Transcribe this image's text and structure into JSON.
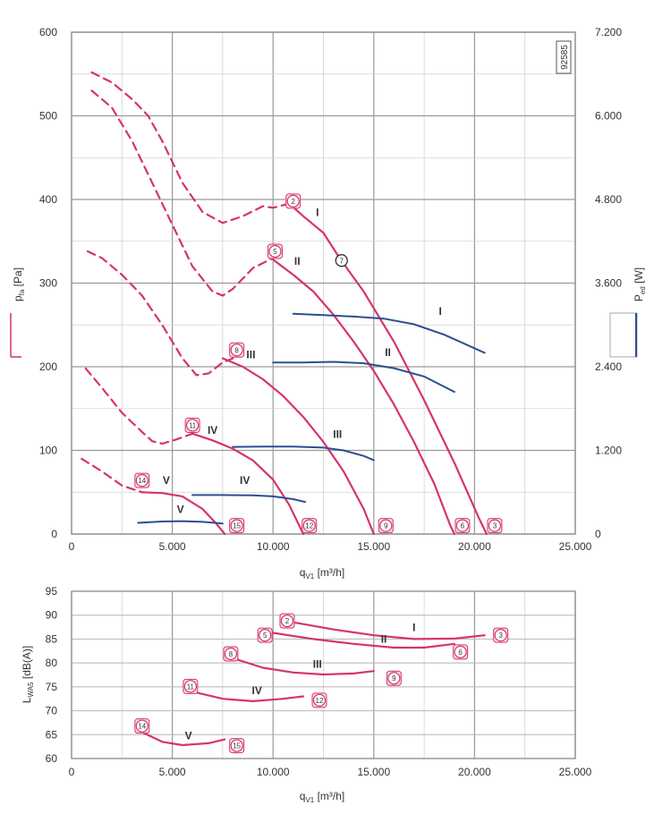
{
  "chart_data": [
    {
      "type": "line",
      "id": "92585",
      "xlabel": "q",
      "xlabel_sub": "V1",
      "xlabel_unit": " [m³/h]",
      "ylabel": "p",
      "ylabel_sub": "fa",
      "ylabel_unit": " [Pa]",
      "y2label": "P",
      "y2label_sub": "ed",
      "y2label_unit": " [W]",
      "xlim": [
        0,
        25000
      ],
      "ylim": [
        0,
        600
      ],
      "y2lim": [
        0,
        7200
      ],
      "x_ticks": [
        0,
        5000,
        10000,
        15000,
        20000,
        25000
      ],
      "x_tick_labels": [
        "0",
        "5.000",
        "10.000",
        "15.000",
        "20.000",
        "25.000"
      ],
      "y_ticks": [
        0,
        100,
        200,
        300,
        400,
        500,
        600
      ],
      "y_tick_labels": [
        "0",
        "100",
        "200",
        "300",
        "400",
        "500",
        "600"
      ],
      "y2_ticks": [
        0,
        1200,
        2400,
        3600,
        4800,
        6000,
        7200
      ],
      "y2_tick_labels": [
        "0",
        "1.200",
        "2.400",
        "3.600",
        "4.800",
        "6.000",
        "7.200"
      ],
      "grid": true,
      "colors": {
        "pressure": "#d6336f",
        "power": "#2b4f8f",
        "grid": "#9a9a9a"
      },
      "pressure_series": [
        {
          "label": "I",
          "dashed": [
            [
              1000,
              552
            ],
            [
              2000,
              540
            ],
            [
              3000,
              520
            ],
            [
              3800,
              500
            ],
            [
              4500,
              470
            ],
            [
              5500,
              420
            ],
            [
              6500,
              385
            ],
            [
              7500,
              372
            ],
            [
              8500,
              380
            ],
            [
              9500,
              392
            ],
            [
              10000,
              390
            ],
            [
              10800,
              395
            ]
          ],
          "solid": [
            [
              10800,
              395
            ],
            [
              11500,
              380
            ],
            [
              12500,
              360
            ],
            [
              13300,
              330
            ],
            [
              14500,
              290
            ],
            [
              16000,
              230
            ],
            [
              17500,
              160
            ],
            [
              19000,
              85
            ],
            [
              20200,
              20
            ],
            [
              20600,
              0
            ]
          ]
        },
        {
          "label": "II",
          "dashed": [
            [
              1000,
              530
            ],
            [
              2000,
              510
            ],
            [
              3000,
              470
            ],
            [
              4000,
              420
            ],
            [
              5000,
              370
            ],
            [
              6000,
              320
            ],
            [
              7000,
              290
            ],
            [
              7500,
              285
            ],
            [
              8000,
              293
            ],
            [
              9000,
              318
            ],
            [
              10000,
              330
            ]
          ],
          "solid": [
            [
              10000,
              328
            ],
            [
              11000,
              310
            ],
            [
              12000,
              290
            ],
            [
              13000,
              262
            ],
            [
              14000,
              230
            ],
            [
              15000,
              195
            ],
            [
              16000,
              155
            ],
            [
              17000,
              110
            ],
            [
              18000,
              60
            ],
            [
              18800,
              10
            ],
            [
              19000,
              0
            ]
          ]
        },
        {
          "label": "III",
          "dashed": [
            [
              800,
              338
            ],
            [
              1500,
              330
            ],
            [
              2500,
              310
            ],
            [
              3500,
              285
            ],
            [
              4500,
              250
            ],
            [
              5500,
              210
            ],
            [
              6200,
              190
            ],
            [
              6800,
              192
            ],
            [
              7500,
              205
            ],
            [
              8000,
              210
            ]
          ],
          "solid": [
            [
              7500,
              210
            ],
            [
              8500,
              200
            ],
            [
              9500,
              185
            ],
            [
              10500,
              165
            ],
            [
              11500,
              140
            ],
            [
              12500,
              110
            ],
            [
              13500,
              75
            ],
            [
              14500,
              30
            ],
            [
              15000,
              0
            ]
          ]
        },
        {
          "label": "IV",
          "dashed": [
            [
              700,
              198
            ],
            [
              1500,
              175
            ],
            [
              2500,
              145
            ],
            [
              3500,
              122
            ],
            [
              4000,
              111
            ],
            [
              4500,
              108
            ],
            [
              5200,
              113
            ],
            [
              6000,
              120
            ]
          ],
          "solid": [
            [
              6000,
              120
            ],
            [
              7000,
              112
            ],
            [
              8000,
              102
            ],
            [
              9000,
              88
            ],
            [
              10000,
              65
            ],
            [
              10800,
              35
            ],
            [
              11500,
              0
            ]
          ]
        },
        {
          "label": "V",
          "dashed": [
            [
              500,
              90
            ],
            [
              1500,
              75
            ],
            [
              2500,
              58
            ],
            [
              3500,
              50
            ]
          ],
          "solid": [
            [
              3500,
              50
            ],
            [
              4500,
              49
            ],
            [
              5500,
              45
            ],
            [
              6500,
              30
            ],
            [
              7200,
              12
            ],
            [
              7600,
              0
            ]
          ]
        }
      ],
      "power_series": [
        {
          "label": "I",
          "points": [
            [
              11000,
              3160
            ],
            [
              12500,
              3140
            ],
            [
              14000,
              3120
            ],
            [
              15500,
              3090
            ],
            [
              17000,
              3010
            ],
            [
              18500,
              2860
            ],
            [
              20500,
              2600
            ]
          ]
        },
        {
          "label": "II",
          "points": [
            [
              10000,
              2460
            ],
            [
              11500,
              2460
            ],
            [
              13000,
              2470
            ],
            [
              14500,
              2450
            ],
            [
              16000,
              2380
            ],
            [
              17500,
              2260
            ],
            [
              19000,
              2040
            ]
          ]
        },
        {
          "label": "III",
          "points": [
            [
              8000,
              1250
            ],
            [
              9500,
              1255
            ],
            [
              11000,
              1255
            ],
            [
              12500,
              1240
            ],
            [
              13500,
              1200
            ],
            [
              14500,
              1120
            ],
            [
              15000,
              1060
            ]
          ]
        },
        {
          "label": "IV",
          "points": [
            [
              6000,
              560
            ],
            [
              7500,
              560
            ],
            [
              9000,
              555
            ],
            [
              10000,
              540
            ],
            [
              11000,
              500
            ],
            [
              11600,
              460
            ]
          ]
        },
        {
          "label": "V",
          "points": [
            [
              3300,
              160
            ],
            [
              4500,
              180
            ],
            [
              5500,
              185
            ],
            [
              6500,
              175
            ],
            [
              7500,
              150
            ]
          ]
        }
      ],
      "curve_labels": [
        {
          "text": "I",
          "x": 12200,
          "y": 380
        },
        {
          "text": "II",
          "x": 11200,
          "y": 322
        },
        {
          "text": "III",
          "x": 8900,
          "y": 210
        },
        {
          "text": "IV",
          "x": 7000,
          "y": 120
        },
        {
          "text": "V",
          "x": 4700,
          "y": 60
        },
        {
          "text": "I",
          "x": 18300,
          "y": 262,
          "axis": "power"
        },
        {
          "text": "II",
          "x": 15700,
          "y": 213,
          "axis": "power"
        },
        {
          "text": "III",
          "x": 13200,
          "y": 115,
          "axis": "power"
        },
        {
          "text": "IV",
          "x": 8600,
          "y": 60,
          "axis": "power"
        },
        {
          "text": "V",
          "x": 5400,
          "y": 25,
          "axis": "power"
        }
      ],
      "point_markers": [
        {
          "text": "2",
          "x": 11000,
          "y": 398
        },
        {
          "text": "5",
          "x": 10100,
          "y": 338
        },
        {
          "text": "7",
          "x": 13400,
          "y": 327,
          "style": "black"
        },
        {
          "text": "8",
          "x": 8200,
          "y": 220
        },
        {
          "text": "11",
          "x": 6000,
          "y": 130
        },
        {
          "text": "14",
          "x": 3500,
          "y": 64
        },
        {
          "text": "3",
          "x": 21000,
          "y": 10
        },
        {
          "text": "6",
          "x": 19400,
          "y": 10
        },
        {
          "text": "9",
          "x": 15600,
          "y": 10
        },
        {
          "text": "12",
          "x": 11800,
          "y": 10
        },
        {
          "text": "15",
          "x": 8200,
          "y": 10
        }
      ]
    },
    {
      "type": "line",
      "xlabel": "q",
      "xlabel_sub": "V1",
      "xlabel_unit": " [m³/h]",
      "ylabel": "L",
      "ylabel_sub": "WA5",
      "ylabel_unit": " [dB(A)]",
      "xlim": [
        0,
        25000
      ],
      "ylim": [
        60,
        95
      ],
      "x_ticks": [
        0,
        5000,
        10000,
        15000,
        20000,
        25000
      ],
      "x_tick_labels": [
        "0",
        "5.000",
        "10.000",
        "15.000",
        "20.000",
        "25.000"
      ],
      "y_ticks": [
        60,
        65,
        70,
        75,
        80,
        85,
        90,
        95
      ],
      "y_tick_labels": [
        "60",
        "65",
        "70",
        "75",
        "80",
        "85",
        "90",
        "95"
      ],
      "grid": true,
      "series": [
        {
          "label": "I",
          "points": [
            [
              11000,
              88.5
            ],
            [
              13000,
              87
            ],
            [
              15000,
              85.8
            ],
            [
              17000,
              85
            ],
            [
              19000,
              85.1
            ],
            [
              20500,
              85.8
            ]
          ]
        },
        {
          "label": "II",
          "points": [
            [
              10000,
              86.3
            ],
            [
              12000,
              85
            ],
            [
              14000,
              84
            ],
            [
              16000,
              83.2
            ],
            [
              17500,
              83.2
            ],
            [
              19000,
              84
            ]
          ]
        },
        {
          "label": "III",
          "points": [
            [
              8000,
              81
            ],
            [
              9500,
              79
            ],
            [
              11000,
              78
            ],
            [
              12500,
              77.6
            ],
            [
              14000,
              77.8
            ],
            [
              15000,
              78.3
            ]
          ]
        },
        {
          "label": "IV",
          "points": [
            [
              6000,
              74
            ],
            [
              7500,
              72.5
            ],
            [
              9000,
              72
            ],
            [
              10500,
              72.5
            ],
            [
              11500,
              73
            ]
          ]
        },
        {
          "label": "V",
          "points": [
            [
              3500,
              65.5
            ],
            [
              4500,
              63.5
            ],
            [
              5500,
              62.8
            ],
            [
              6800,
              63.2
            ],
            [
              7600,
              64
            ]
          ]
        }
      ],
      "curve_labels": [
        {
          "text": "I",
          "x": 17000,
          "y": 86.7
        },
        {
          "text": "II",
          "x": 15500,
          "y": 84.2
        },
        {
          "text": "III",
          "x": 12200,
          "y": 79
        },
        {
          "text": "IV",
          "x": 9200,
          "y": 73.5
        },
        {
          "text": "V",
          "x": 5800,
          "y": 64
        }
      ],
      "point_markers": [
        {
          "text": "2",
          "x": 10700,
          "y": 88.8
        },
        {
          "text": "5",
          "x": 9600,
          "y": 85.8
        },
        {
          "text": "3",
          "x": 21300,
          "y": 85.8
        },
        {
          "text": "6",
          "x": 19300,
          "y": 82.3
        },
        {
          "text": "8",
          "x": 7900,
          "y": 81.9
        },
        {
          "text": "9",
          "x": 16000,
          "y": 76.8
        },
        {
          "text": "11",
          "x": 5900,
          "y": 75.1
        },
        {
          "text": "12",
          "x": 12300,
          "y": 72.2
        },
        {
          "text": "14",
          "x": 3500,
          "y": 66.8
        },
        {
          "text": "15",
          "x": 8200,
          "y": 62.7
        }
      ]
    }
  ]
}
